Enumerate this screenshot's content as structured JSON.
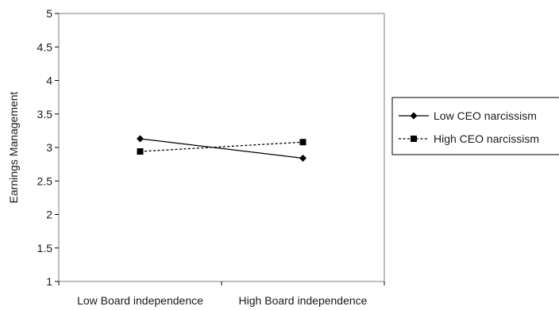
{
  "chart_data": {
    "type": "line",
    "title": "",
    "xlabel": "",
    "ylabel": "Earnings Management",
    "categories": [
      "Low Board independence",
      "High Board independence"
    ],
    "ylim": [
      1,
      5
    ],
    "yticks": [
      1,
      1.5,
      2,
      2.5,
      3,
      3.5,
      4,
      4.5,
      5
    ],
    "ytick_labels": [
      "1",
      "1.5",
      "2",
      "2.5",
      "3",
      "3.5",
      "4",
      "4.5",
      "5"
    ],
    "grid": false,
    "legend_position": "right",
    "series": [
      {
        "name": "Low CEO narcissism",
        "values": [
          3.13,
          2.84
        ],
        "marker": "diamond",
        "line_style": "solid",
        "color": "#000000"
      },
      {
        "name": "High CEO narcissism",
        "values": [
          2.94,
          3.08
        ],
        "marker": "square",
        "line_style": "dashed",
        "color": "#000000"
      }
    ]
  }
}
